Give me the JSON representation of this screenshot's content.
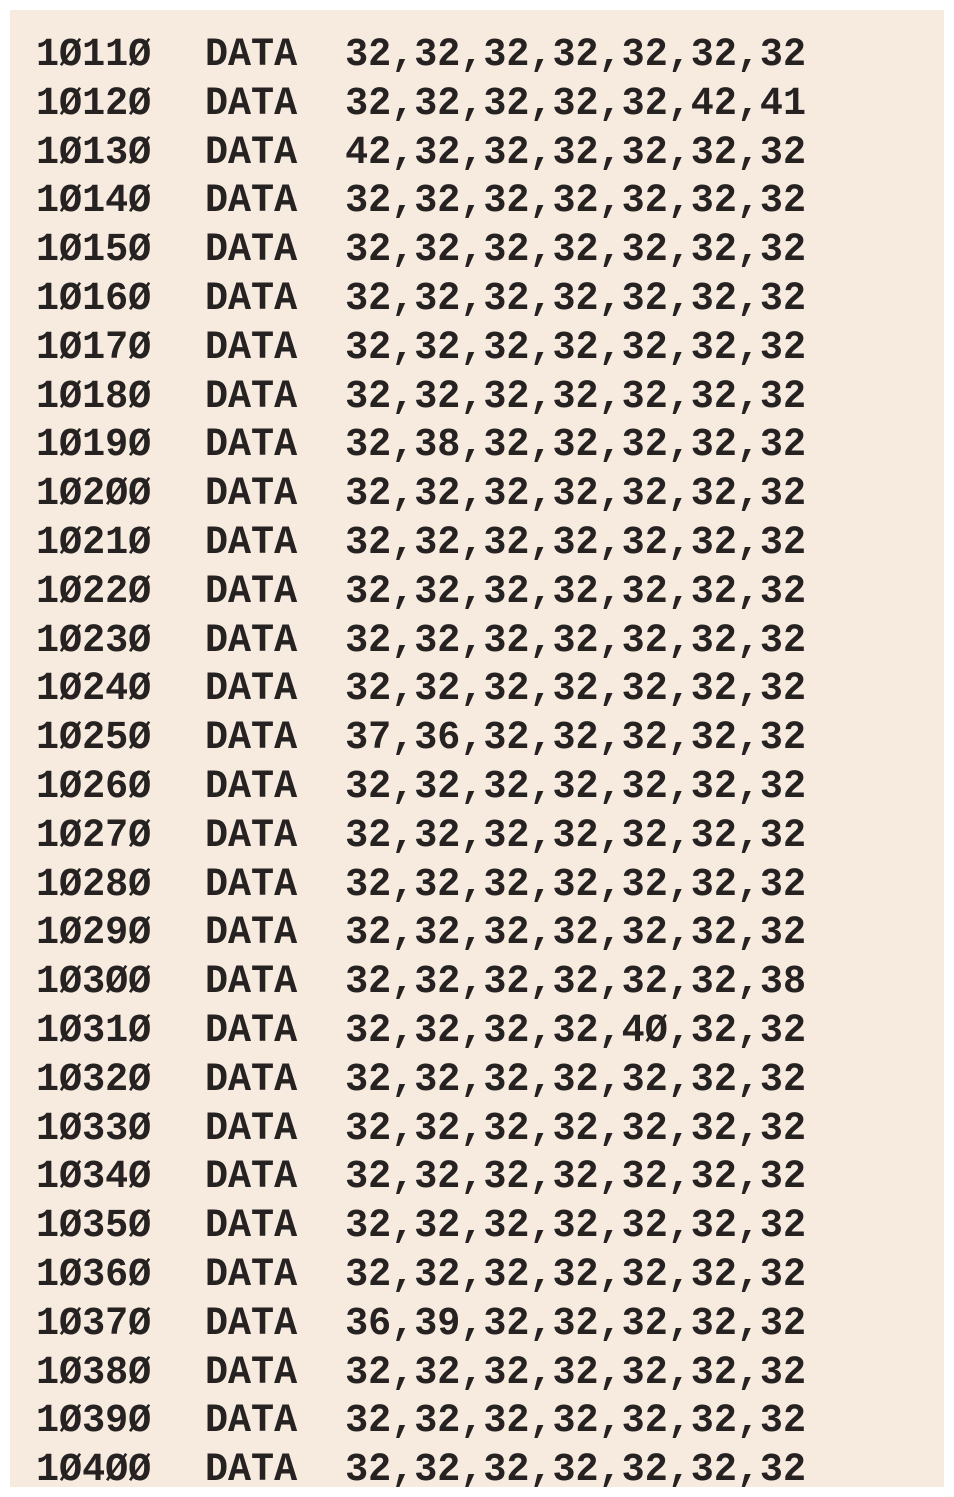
{
  "lines": [
    {
      "num": "1Ø11Ø",
      "kw": "DATA",
      "values": "32,32,32,32,32,32,32"
    },
    {
      "num": "1Ø12Ø",
      "kw": "DATA",
      "values": "32,32,32,32,32,42,41"
    },
    {
      "num": "1Ø13Ø",
      "kw": "DATA",
      "values": "42,32,32,32,32,32,32"
    },
    {
      "num": "1Ø14Ø",
      "kw": "DATA",
      "values": "32,32,32,32,32,32,32"
    },
    {
      "num": "1Ø15Ø",
      "kw": "DATA",
      "values": "32,32,32,32,32,32,32"
    },
    {
      "num": "1Ø16Ø",
      "kw": "DATA",
      "values": "32,32,32,32,32,32,32"
    },
    {
      "num": "1Ø17Ø",
      "kw": "DATA",
      "values": "32,32,32,32,32,32,32"
    },
    {
      "num": "1Ø18Ø",
      "kw": "DATA",
      "values": "32,32,32,32,32,32,32"
    },
    {
      "num": "1Ø19Ø",
      "kw": "DATA",
      "values": "32,38,32,32,32,32,32"
    },
    {
      "num": "1Ø2ØØ",
      "kw": "DATA",
      "values": "32,32,32,32,32,32,32"
    },
    {
      "num": "1Ø21Ø",
      "kw": "DATA",
      "values": "32,32,32,32,32,32,32"
    },
    {
      "num": "1Ø22Ø",
      "kw": "DATA",
      "values": "32,32,32,32,32,32,32"
    },
    {
      "num": "1Ø23Ø",
      "kw": "DATA",
      "values": "32,32,32,32,32,32,32"
    },
    {
      "num": "1Ø24Ø",
      "kw": "DATA",
      "values": "32,32,32,32,32,32,32"
    },
    {
      "num": "1Ø25Ø",
      "kw": "DATA",
      "values": "37,36,32,32,32,32,32"
    },
    {
      "num": "1Ø26Ø",
      "kw": "DATA",
      "values": "32,32,32,32,32,32,32"
    },
    {
      "num": "1Ø27Ø",
      "kw": "DATA",
      "values": "32,32,32,32,32,32,32"
    },
    {
      "num": "1Ø28Ø",
      "kw": "DATA",
      "values": "32,32,32,32,32,32,32"
    },
    {
      "num": "1Ø29Ø",
      "kw": "DATA",
      "values": "32,32,32,32,32,32,32"
    },
    {
      "num": "1Ø3ØØ",
      "kw": "DATA",
      "values": "32,32,32,32,32,32,38"
    },
    {
      "num": "1Ø31Ø",
      "kw": "DATA",
      "values": "32,32,32,32,4Ø,32,32"
    },
    {
      "num": "1Ø32Ø",
      "kw": "DATA",
      "values": "32,32,32,32,32,32,32"
    },
    {
      "num": "1Ø33Ø",
      "kw": "DATA",
      "values": "32,32,32,32,32,32,32"
    },
    {
      "num": "1Ø34Ø",
      "kw": "DATA",
      "values": "32,32,32,32,32,32,32"
    },
    {
      "num": "1Ø35Ø",
      "kw": "DATA",
      "values": "32,32,32,32,32,32,32"
    },
    {
      "num": "1Ø36Ø",
      "kw": "DATA",
      "values": "32,32,32,32,32,32,32"
    },
    {
      "num": "1Ø37Ø",
      "kw": "DATA",
      "values": "36,39,32,32,32,32,32"
    },
    {
      "num": "1Ø38Ø",
      "kw": "DATA",
      "values": "32,32,32,32,32,32,32"
    },
    {
      "num": "1Ø39Ø",
      "kw": "DATA",
      "values": "32,32,32,32,32,32,32"
    },
    {
      "num": "1Ø4ØØ",
      "kw": "DATA",
      "values": "32,32,32,32,32,32,32"
    }
  ]
}
